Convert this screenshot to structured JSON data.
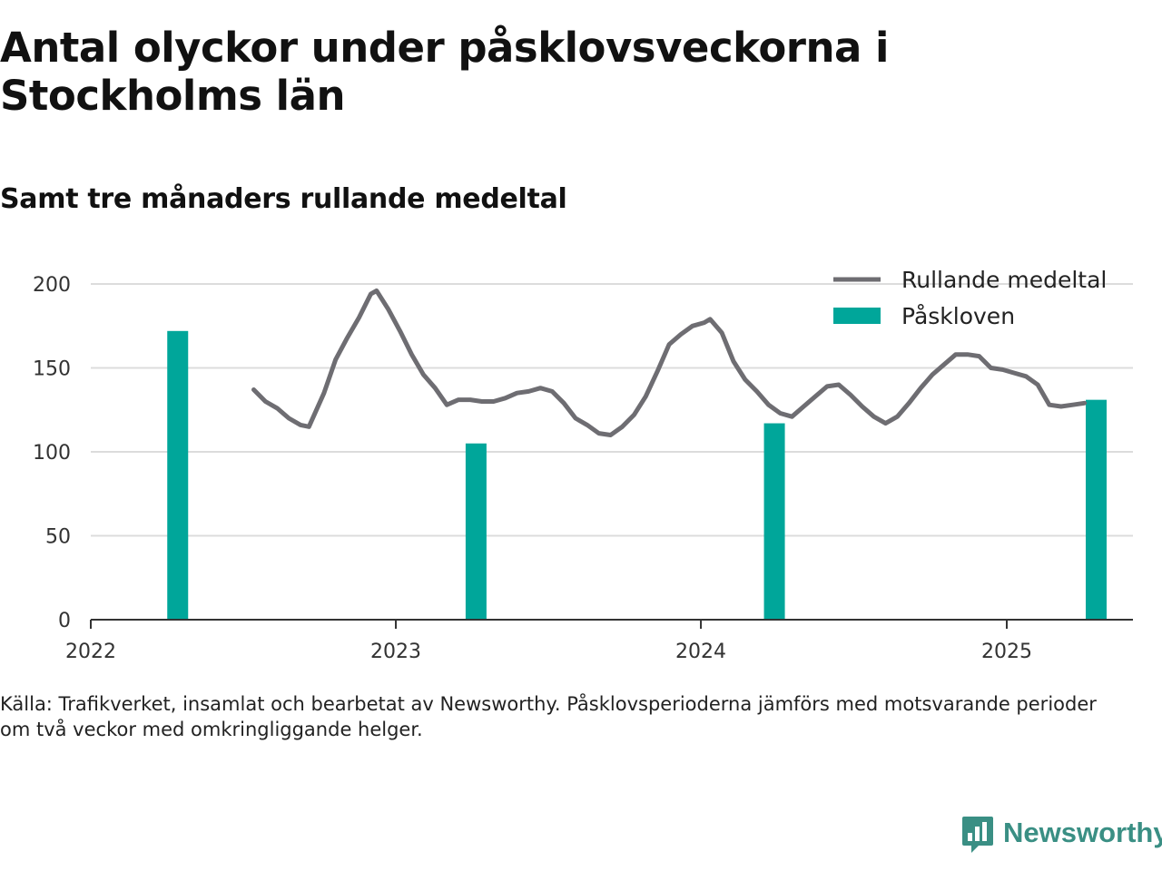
{
  "title": "Antal olyckor under påsklovsveckorna i Stockholms län",
  "subtitle": "Samt tre månaders rullande medeltal",
  "source_lines": [
    "Källa: Trafikverket, insamlat och bearbetat av Newsworthy. Påsklovsperioderna jämförs med motsvarande perioder",
    "om två veckor med omkringliggande helger."
  ],
  "logo": {
    "text": "Newsworthy",
    "icon": "newsworthy-chart-bubble-icon"
  },
  "colors": {
    "line": "#6e6d72",
    "bar": "#00a69a",
    "grid": "#dcdcdc",
    "axis": "#333333",
    "logo": "#3a8f84"
  },
  "chart_data": {
    "type": "bar+line",
    "ylim": [
      0,
      200
    ],
    "yticks": [
      "0",
      "50",
      "100",
      "150",
      "200"
    ],
    "xlim": [
      "2022-01-01",
      "2025-06-01"
    ],
    "xticks": [
      {
        "label": "2022",
        "date": "2022-01-01"
      },
      {
        "label": "2023",
        "date": "2023-01-01"
      },
      {
        "label": "2024",
        "date": "2024-01-01"
      },
      {
        "label": "2025",
        "date": "2025-01-01"
      }
    ],
    "grid": true,
    "legend_position": "top-right",
    "series": [
      {
        "name": "Rullande medeltal",
        "type": "line",
        "points": [
          [
            "2022-07-15",
            137
          ],
          [
            "2022-07-29",
            130
          ],
          [
            "2022-08-12",
            126
          ],
          [
            "2022-08-26",
            120
          ],
          [
            "2022-09-09",
            116
          ],
          [
            "2022-09-19",
            115
          ],
          [
            "2022-10-07",
            135
          ],
          [
            "2022-10-21",
            155
          ],
          [
            "2022-11-04",
            168
          ],
          [
            "2022-11-18",
            180
          ],
          [
            "2022-12-02",
            194
          ],
          [
            "2022-12-09",
            196
          ],
          [
            "2022-12-23",
            185
          ],
          [
            "2023-01-06",
            172
          ],
          [
            "2023-01-20",
            158
          ],
          [
            "2023-02-03",
            146
          ],
          [
            "2023-02-17",
            138
          ],
          [
            "2023-03-03",
            128
          ],
          [
            "2023-03-17",
            131
          ],
          [
            "2023-03-31",
            131
          ],
          [
            "2023-04-14",
            130
          ],
          [
            "2023-04-28",
            130
          ],
          [
            "2023-05-12",
            132
          ],
          [
            "2023-05-26",
            135
          ],
          [
            "2023-06-09",
            136
          ],
          [
            "2023-06-23",
            138
          ],
          [
            "2023-07-07",
            136
          ],
          [
            "2023-07-21",
            129
          ],
          [
            "2023-08-04",
            120
          ],
          [
            "2023-08-18",
            116
          ],
          [
            "2023-09-01",
            111
          ],
          [
            "2023-09-15",
            110
          ],
          [
            "2023-09-29",
            115
          ],
          [
            "2023-10-13",
            122
          ],
          [
            "2023-10-27",
            133
          ],
          [
            "2023-11-10",
            148
          ],
          [
            "2023-11-24",
            164
          ],
          [
            "2023-12-08",
            170
          ],
          [
            "2023-12-22",
            175
          ],
          [
            "2024-01-05",
            177
          ],
          [
            "2024-01-12",
            179
          ],
          [
            "2024-01-26",
            171
          ],
          [
            "2024-02-09",
            154
          ],
          [
            "2024-02-23",
            143
          ],
          [
            "2024-03-08",
            136
          ],
          [
            "2024-03-22",
            128
          ],
          [
            "2024-04-05",
            123
          ],
          [
            "2024-04-19",
            121
          ],
          [
            "2024-05-03",
            127
          ],
          [
            "2024-05-17",
            133
          ],
          [
            "2024-05-31",
            139
          ],
          [
            "2024-06-14",
            140
          ],
          [
            "2024-06-28",
            134
          ],
          [
            "2024-07-12",
            127
          ],
          [
            "2024-07-26",
            121
          ],
          [
            "2024-08-09",
            117
          ],
          [
            "2024-08-23",
            121
          ],
          [
            "2024-09-06",
            129
          ],
          [
            "2024-09-20",
            138
          ],
          [
            "2024-10-04",
            146
          ],
          [
            "2024-10-18",
            152
          ],
          [
            "2024-11-01",
            158
          ],
          [
            "2024-11-15",
            158
          ],
          [
            "2024-11-29",
            157
          ],
          [
            "2024-12-13",
            150
          ],
          [
            "2024-12-27",
            149
          ],
          [
            "2025-01-10",
            147
          ],
          [
            "2025-01-24",
            145
          ],
          [
            "2025-02-07",
            140
          ],
          [
            "2025-02-21",
            128
          ],
          [
            "2025-03-07",
            127
          ],
          [
            "2025-03-21",
            128
          ],
          [
            "2025-04-04",
            129
          ]
        ]
      },
      {
        "name": "Påskloven",
        "type": "bar",
        "points": [
          [
            "2022-04-15",
            172
          ],
          [
            "2023-04-07",
            105
          ],
          [
            "2024-03-29",
            117
          ],
          [
            "2025-04-18",
            131
          ]
        ]
      }
    ]
  }
}
